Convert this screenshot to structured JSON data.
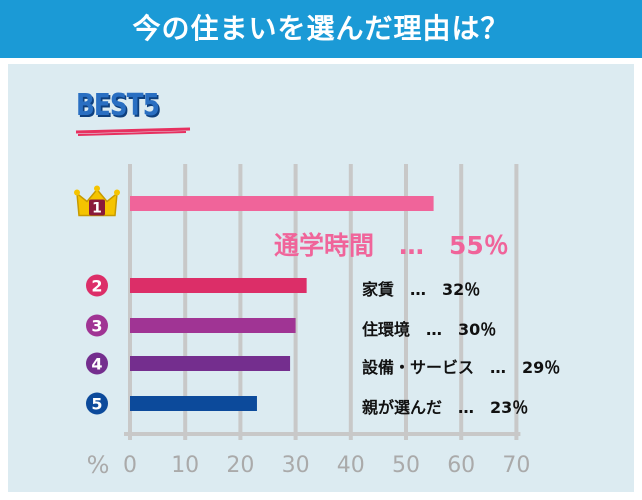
{
  "title": "今の住まいを選んだ理由は？",
  "best_label": "BEST5",
  "chart_data": {
    "type": "bar",
    "orientation": "horizontal",
    "categories": [
      "通学時間",
      "家賃",
      "住環境",
      "設備・サービス",
      "親が選んだ"
    ],
    "values": [
      55,
      32,
      30,
      29,
      23
    ],
    "ranks": [
      "1",
      "2",
      "3",
      "4",
      "5"
    ],
    "value_labels": [
      "通学時間　…　55％",
      "家賃　…　32％",
      "住環境　…　30％",
      "設備・サービス　…　29％",
      "親が選んだ　…　23％"
    ],
    "colors": [
      "#f0649a",
      "#dc2e68",
      "#a03494",
      "#742e8e",
      "#0c4a9b"
    ],
    "xlabel": "%",
    "xlim": [
      0,
      70
    ],
    "xticks": [
      "0",
      "10",
      "20",
      "30",
      "40",
      "50",
      "60",
      "70"
    ],
    "grid": true,
    "gridline_color": "#c8c8c8",
    "crown_color": "#f5c400"
  }
}
